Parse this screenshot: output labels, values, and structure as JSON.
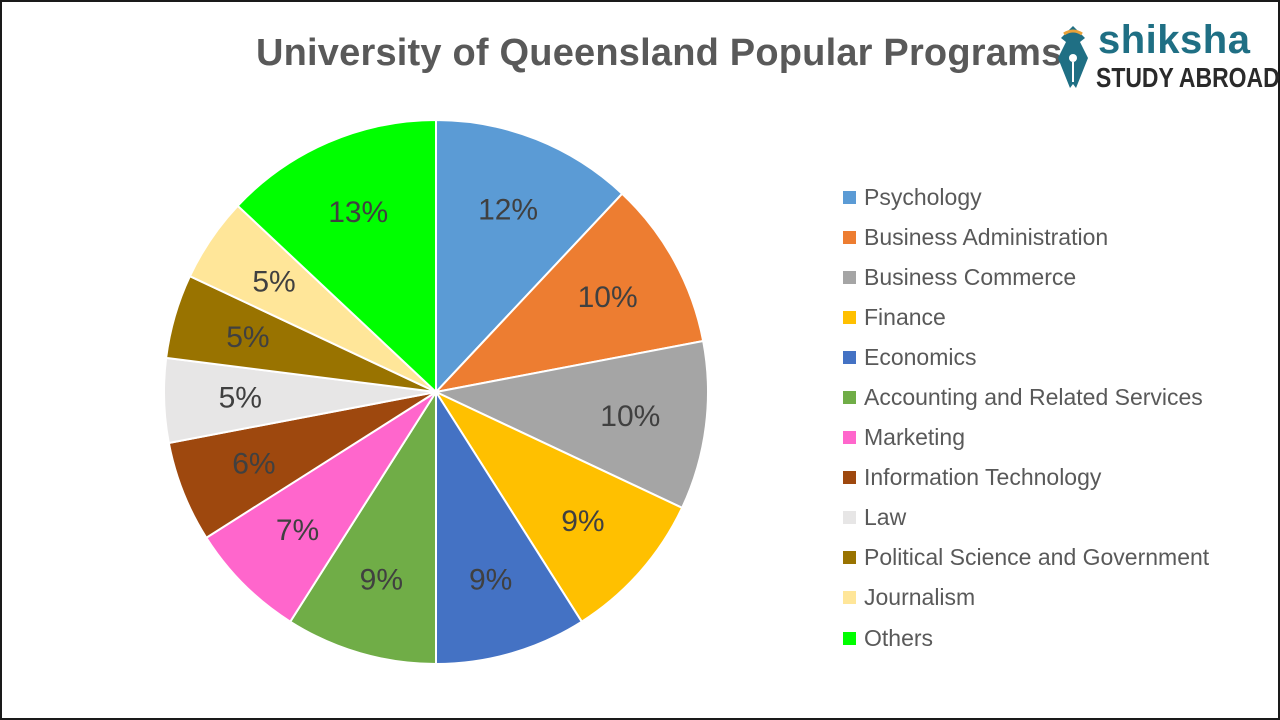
{
  "logo": {
    "word": "shiksha",
    "subtitle": "STUDY ABROAD",
    "primary_color": "#1f6f84"
  },
  "chart_data": {
    "type": "pie",
    "title": "University of Queensland Popular Programs",
    "legend_placement": "right",
    "start_angle": "12 o'clock, clockwise",
    "slices": [
      {
        "label": "Psychology",
        "value": 12,
        "display": "12%",
        "color": "#5b9bd5"
      },
      {
        "label": "Business Administration",
        "value": 10,
        "display": "10%",
        "color": "#ed7d31"
      },
      {
        "label": "Business Commerce",
        "value": 10,
        "display": "10%",
        "color": "#a5a5a5"
      },
      {
        "label": "Finance",
        "value": 9,
        "display": "9%",
        "color": "#ffc000"
      },
      {
        "label": "Economics",
        "value": 9,
        "display": "9%",
        "color": "#4472c4"
      },
      {
        "label": "Accounting and Related Services",
        "value": 9,
        "display": "9%",
        "color": "#70ad47"
      },
      {
        "label": "Marketing",
        "value": 7,
        "display": "7%",
        "color": "#ff66cc"
      },
      {
        "label": "Information Technology",
        "value": 6,
        "display": "6%",
        "color": "#9e480e"
      },
      {
        "label": "Law",
        "value": 5,
        "display": "5%",
        "color": "#e7e6e6"
      },
      {
        "label": "Political Science and Government",
        "value": 5,
        "display": "5%",
        "color": "#997300"
      },
      {
        "label": "Journalism",
        "value": 5,
        "display": "5%",
        "color": "#ffe699"
      },
      {
        "label": "Others",
        "value": 13,
        "display": "13%",
        "color": "#00ff00"
      }
    ]
  }
}
